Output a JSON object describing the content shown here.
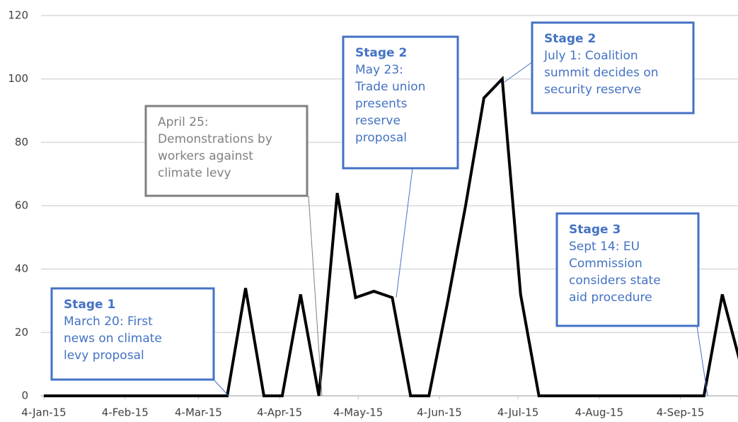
{
  "chart_data": {
    "type": "line",
    "x": [
      "2015-01-04",
      "2015-01-11",
      "2015-01-18",
      "2015-01-25",
      "2015-02-01",
      "2015-02-08",
      "2015-02-15",
      "2015-02-22",
      "2015-03-01",
      "2015-03-08",
      "2015-03-15",
      "2015-03-22",
      "2015-03-29",
      "2015-04-05",
      "2015-04-12",
      "2015-04-19",
      "2015-04-26",
      "2015-05-03",
      "2015-05-10",
      "2015-05-17",
      "2015-05-24",
      "2015-05-31",
      "2015-06-07",
      "2015-06-14",
      "2015-06-21",
      "2015-06-28",
      "2015-07-05",
      "2015-07-12",
      "2015-07-19",
      "2015-07-26",
      "2015-08-02",
      "2015-08-09",
      "2015-08-16",
      "2015-08-23",
      "2015-08-30",
      "2015-09-06",
      "2015-09-13",
      "2015-09-20",
      "2015-09-27"
    ],
    "series": [
      {
        "color": "#000000",
        "values": [
          0,
          0,
          0,
          0,
          0,
          0,
          0,
          0,
          0,
          0,
          0,
          34,
          0,
          0,
          32,
          0,
          64,
          31,
          33,
          31,
          0,
          0,
          29,
          60,
          94,
          100,
          32,
          0,
          0,
          0,
          0,
          0,
          0,
          0,
          0,
          0,
          0,
          32,
          10
        ]
      }
    ],
    "xlim": [
      "2015-01-04",
      "2015-09-26"
    ],
    "xticks": [
      {
        "value": "2015-01-04",
        "label": "4-Jan-15"
      },
      {
        "value": "2015-02-04",
        "label": "4-Feb-15"
      },
      {
        "value": "2015-03-04",
        "label": "4-Mar-15"
      },
      {
        "value": "2015-04-04",
        "label": "4-Apr-15"
      },
      {
        "value": "2015-05-04",
        "label": "4-May-15"
      },
      {
        "value": "2015-06-04",
        "label": "4-Jun-15"
      },
      {
        "value": "2015-07-04",
        "label": "4-Jul-15"
      },
      {
        "value": "2015-08-04",
        "label": "4-Aug-15"
      },
      {
        "value": "2015-09-04",
        "label": "4-Sep-15"
      }
    ],
    "ylim": [
      0,
      120
    ],
    "yticks": [
      0,
      20,
      40,
      60,
      80,
      100,
      120
    ],
    "grid": true,
    "annotations": [
      {
        "heading": "Stage 1",
        "lines": [
          "March 20: First",
          "news on climate",
          "levy proposal"
        ],
        "color": "#4472c4"
      },
      {
        "lines": [
          "April 25:",
          "Demonstrations by",
          "workers against",
          "climate levy"
        ],
        "color": "#808080"
      },
      {
        "heading": "Stage 2",
        "lines": [
          "May 23:",
          "Trade union",
          "presents",
          "reserve",
          "proposal"
        ],
        "color": "#4472c4"
      },
      {
        "heading": "Stage 2",
        "lines": [
          "July 1: Coalition",
          "summit decides on",
          "security reserve"
        ],
        "color": "#4472c4"
      },
      {
        "heading": "Stage 3",
        "lines": [
          "Sept 14: EU",
          "Commission",
          "considers state",
          "aid procedure"
        ],
        "color": "#4472c4"
      }
    ]
  }
}
